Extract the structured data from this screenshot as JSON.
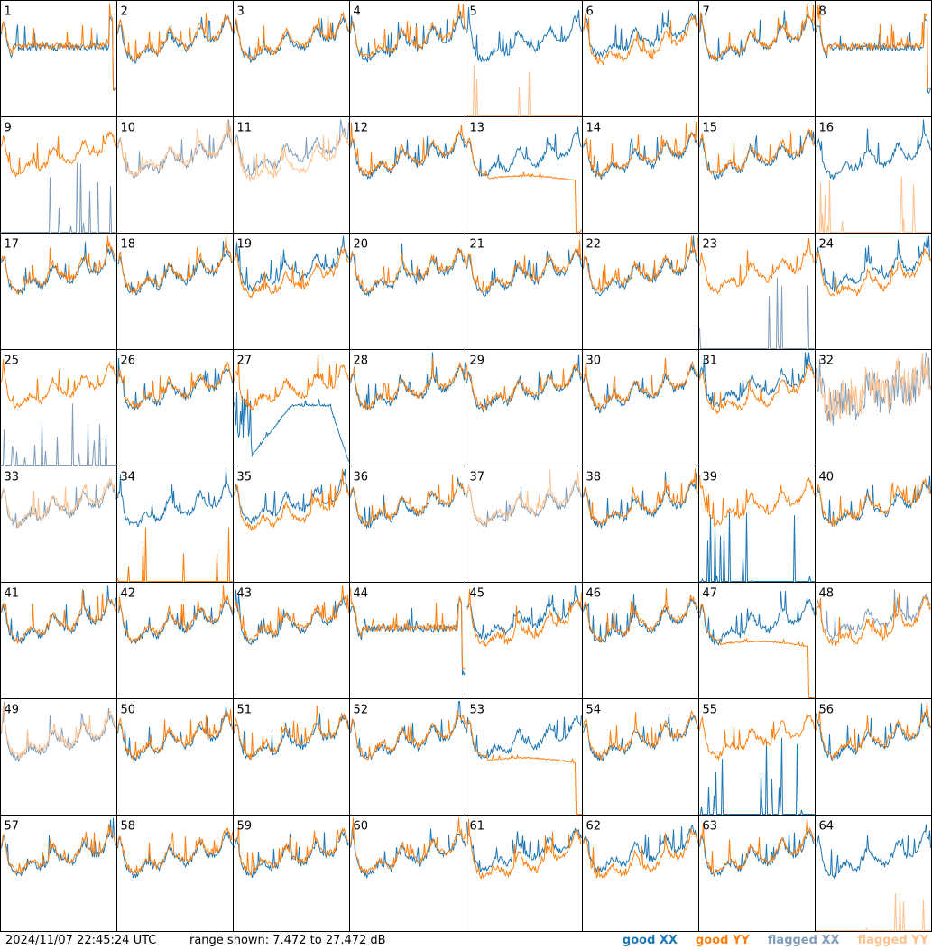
{
  "colors": {
    "good_xx": "#1f77b4",
    "good_yy": "#ff7f0e",
    "flagged_xx": "#7f9db9",
    "flagged_yy": "#ffc08c"
  },
  "footer": {
    "timestamp": "2024/11/07 22:45:24 UTC",
    "range_text": "range shown: 7.472 to 27.472 dB"
  },
  "legend": {
    "good_xx": "good XX",
    "good_yy": "good YY",
    "flagged_xx": "flagged XX",
    "flagged_yy": "flagged YY"
  },
  "chart_data": {
    "type": "line",
    "range_db": [
      7.472,
      27.472
    ],
    "grid": {
      "rows": 8,
      "cols": 8
    },
    "panels": [
      {
        "id": "1",
        "xx": "good",
        "yy": "good",
        "shape": "flat-top"
      },
      {
        "id": "2",
        "xx": "good",
        "yy": "good",
        "shape": "standard"
      },
      {
        "id": "3",
        "xx": "good",
        "yy": "good",
        "shape": "standard"
      },
      {
        "id": "4",
        "xx": "good",
        "yy": "good",
        "shape": "standard"
      },
      {
        "id": "5",
        "xx": "good",
        "yy": "flagged",
        "shape": "xx-only"
      },
      {
        "id": "6",
        "xx": "good",
        "yy": "good",
        "shape": "split-low"
      },
      {
        "id": "7",
        "xx": "good",
        "yy": "good",
        "shape": "standard"
      },
      {
        "id": "8",
        "xx": "good",
        "yy": "good",
        "shape": "flat-top"
      },
      {
        "id": "9",
        "xx": "flagged",
        "yy": "good",
        "shape": "yy-only"
      },
      {
        "id": "10",
        "xx": "flagged",
        "yy": "flagged",
        "shape": "standard"
      },
      {
        "id": "11",
        "xx": "flagged",
        "yy": "flagged",
        "shape": "split-low"
      },
      {
        "id": "12",
        "xx": "good",
        "yy": "good",
        "shape": "standard"
      },
      {
        "id": "13",
        "xx": "good",
        "yy": "good",
        "shape": "drop-yy"
      },
      {
        "id": "14",
        "xx": "good",
        "yy": "good",
        "shape": "standard"
      },
      {
        "id": "15",
        "xx": "good",
        "yy": "good",
        "shape": "standard"
      },
      {
        "id": "16",
        "xx": "good",
        "yy": "flagged",
        "shape": "xx-only"
      },
      {
        "id": "17",
        "xx": "good",
        "yy": "good",
        "shape": "standard"
      },
      {
        "id": "18",
        "xx": "good",
        "yy": "good",
        "shape": "standard"
      },
      {
        "id": "19",
        "xx": "good",
        "yy": "good",
        "shape": "split-low"
      },
      {
        "id": "20",
        "xx": "good",
        "yy": "good",
        "shape": "standard"
      },
      {
        "id": "21",
        "xx": "good",
        "yy": "good",
        "shape": "standard"
      },
      {
        "id": "22",
        "xx": "good",
        "yy": "good",
        "shape": "standard"
      },
      {
        "id": "23",
        "xx": "flagged",
        "yy": "good",
        "shape": "yy-only"
      },
      {
        "id": "24",
        "xx": "good",
        "yy": "good",
        "shape": "split-low"
      },
      {
        "id": "25",
        "xx": "flagged",
        "yy": "good",
        "shape": "yy-only"
      },
      {
        "id": "26",
        "xx": "good",
        "yy": "good",
        "shape": "standard"
      },
      {
        "id": "27",
        "xx": "good",
        "yy": "good",
        "shape": "drop-xx"
      },
      {
        "id": "28",
        "xx": "good",
        "yy": "good",
        "shape": "standard"
      },
      {
        "id": "29",
        "xx": "good",
        "yy": "good",
        "shape": "standard"
      },
      {
        "id": "30",
        "xx": "good",
        "yy": "good",
        "shape": "standard"
      },
      {
        "id": "31",
        "xx": "good",
        "yy": "good",
        "shape": "split-low"
      },
      {
        "id": "32",
        "xx": "flagged",
        "yy": "flagged",
        "shape": "noisy"
      },
      {
        "id": "33",
        "xx": "flagged",
        "yy": "flagged",
        "shape": "standard"
      },
      {
        "id": "34",
        "xx": "good",
        "yy": "good",
        "shape": "xx-only"
      },
      {
        "id": "35",
        "xx": "good",
        "yy": "good",
        "shape": "split-low"
      },
      {
        "id": "36",
        "xx": "good",
        "yy": "good",
        "shape": "standard"
      },
      {
        "id": "37",
        "xx": "flagged",
        "yy": "flagged",
        "shape": "standard"
      },
      {
        "id": "38",
        "xx": "good",
        "yy": "good",
        "shape": "standard"
      },
      {
        "id": "39",
        "xx": "good",
        "yy": "good",
        "shape": "yy-only"
      },
      {
        "id": "40",
        "xx": "good",
        "yy": "good",
        "shape": "standard"
      },
      {
        "id": "41",
        "xx": "good",
        "yy": "good",
        "shape": "standard"
      },
      {
        "id": "42",
        "xx": "good",
        "yy": "good",
        "shape": "standard"
      },
      {
        "id": "43",
        "xx": "good",
        "yy": "good",
        "shape": "standard"
      },
      {
        "id": "44",
        "xx": "good",
        "yy": "good",
        "shape": "flat-top"
      },
      {
        "id": "45",
        "xx": "good",
        "yy": "good",
        "shape": "split-low"
      },
      {
        "id": "46",
        "xx": "good",
        "yy": "good",
        "shape": "standard"
      },
      {
        "id": "47",
        "xx": "good",
        "yy": "good",
        "shape": "drop-yy"
      },
      {
        "id": "48",
        "xx": "flagged",
        "yy": "good",
        "shape": "split-low"
      },
      {
        "id": "49",
        "xx": "flagged",
        "yy": "flagged",
        "shape": "standard"
      },
      {
        "id": "50",
        "xx": "good",
        "yy": "good",
        "shape": "standard"
      },
      {
        "id": "51",
        "xx": "good",
        "yy": "good",
        "shape": "standard"
      },
      {
        "id": "52",
        "xx": "good",
        "yy": "good",
        "shape": "standard"
      },
      {
        "id": "53",
        "xx": "good",
        "yy": "good",
        "shape": "drop-yy"
      },
      {
        "id": "54",
        "xx": "good",
        "yy": "good",
        "shape": "standard"
      },
      {
        "id": "55",
        "xx": "good",
        "yy": "good",
        "shape": "yy-only"
      },
      {
        "id": "56",
        "xx": "good",
        "yy": "good",
        "shape": "standard"
      },
      {
        "id": "57",
        "xx": "good",
        "yy": "good",
        "shape": "standard"
      },
      {
        "id": "58",
        "xx": "good",
        "yy": "good",
        "shape": "standard"
      },
      {
        "id": "59",
        "xx": "good",
        "yy": "good",
        "shape": "standard"
      },
      {
        "id": "60",
        "xx": "good",
        "yy": "good",
        "shape": "standard"
      },
      {
        "id": "61",
        "xx": "good",
        "yy": "good",
        "shape": "split-low"
      },
      {
        "id": "62",
        "xx": "good",
        "yy": "good",
        "shape": "split-low"
      },
      {
        "id": "63",
        "xx": "good",
        "yy": "good",
        "shape": "standard"
      },
      {
        "id": "64",
        "xx": "good",
        "yy": "flagged",
        "shape": "xx-only"
      }
    ]
  }
}
